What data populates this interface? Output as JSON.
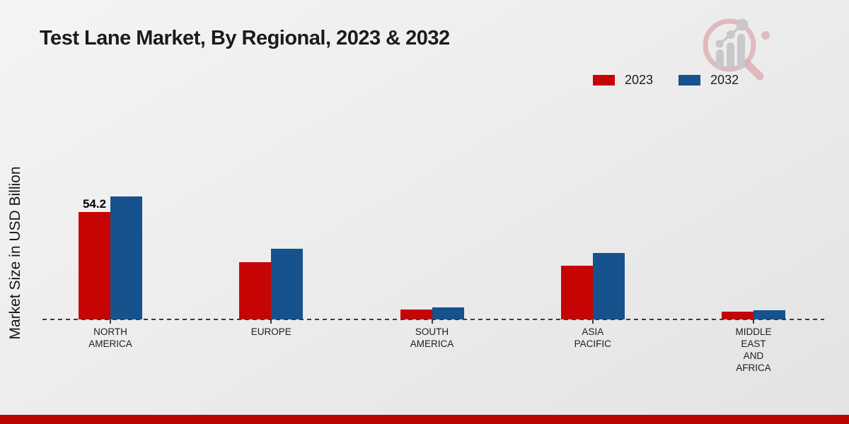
{
  "header": {
    "title": "Test Lane Market, By Regional, 2023 & 2032"
  },
  "axes": {
    "y_label": "Market Size in USD Billion"
  },
  "legend": {
    "items": [
      {
        "label": "2023",
        "color": "#c70404"
      },
      {
        "label": "2032",
        "color": "#16528e"
      }
    ]
  },
  "chart_data": {
    "type": "bar",
    "title": "Test Lane Market, By Regional, 2023 & 2032",
    "ylabel": "Market Size in USD Billion",
    "categories": [
      "NORTH\nAMERICA",
      "EUROPE",
      "SOUTH\nAMERICA",
      "ASIA\nPACIFIC",
      "MIDDLE\nEAST\nAND\nAFRICA"
    ],
    "series": [
      {
        "name": "2023",
        "color": "#c70404",
        "values": [
          54.2,
          28.8,
          5.0,
          27.0,
          3.9
        ]
      },
      {
        "name": "2032",
        "color": "#16528e",
        "values": [
          62.1,
          35.6,
          6.0,
          33.5,
          4.6
        ]
      }
    ],
    "data_labels": [
      {
        "series_index": 0,
        "category_index": 0,
        "text": "54.2"
      }
    ],
    "ylim": [
      0,
      70
    ],
    "grid": false,
    "baseline_style": "dashed",
    "legend_position": "top-right"
  },
  "branding": {
    "logo": "magnifier-bar-chart-logo",
    "accent_bar_color": "#bd0404"
  }
}
